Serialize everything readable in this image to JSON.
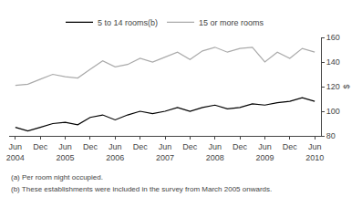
{
  "chart_data": {
    "type": "line",
    "categories": [
      "Jun\n2004",
      null,
      "Dec",
      null,
      "Jun\n2005",
      null,
      "Dec",
      null,
      "Jun\n2006",
      null,
      "Dec",
      null,
      "Jun\n2007",
      null,
      "Dec",
      null,
      "Jun\n2008",
      null,
      "Dec",
      null,
      "Jun\n2009",
      null,
      "Dec",
      null,
      "Jun\n2010"
    ],
    "series": [
      {
        "name": "5 to 14 rooms(b)",
        "color": "#000000",
        "values": [
          87,
          84,
          87,
          90,
          91,
          89,
          95,
          97,
          93,
          97,
          100,
          98,
          100,
          103,
          100,
          103,
          105,
          102,
          103,
          106,
          105,
          107,
          108,
          111,
          108
        ]
      },
      {
        "name": "15 or more rooms",
        "color": "#aaaaaa",
        "values": [
          121,
          122,
          126,
          130,
          128,
          127,
          134,
          141,
          136,
          138,
          143,
          140,
          144,
          148,
          142,
          149,
          152,
          148,
          151,
          152,
          140,
          148,
          143,
          151,
          148
        ]
      }
    ],
    "ylabel": "$",
    "ylim": [
      80,
      160
    ],
    "yticks": [
      80,
      100,
      120,
      140,
      160
    ],
    "grid": false,
    "legend": "upper center",
    "annotations": [
      "(a) Per room night occupied.",
      "(b) These establishments were included in the survey from March 2005 onwards."
    ]
  }
}
